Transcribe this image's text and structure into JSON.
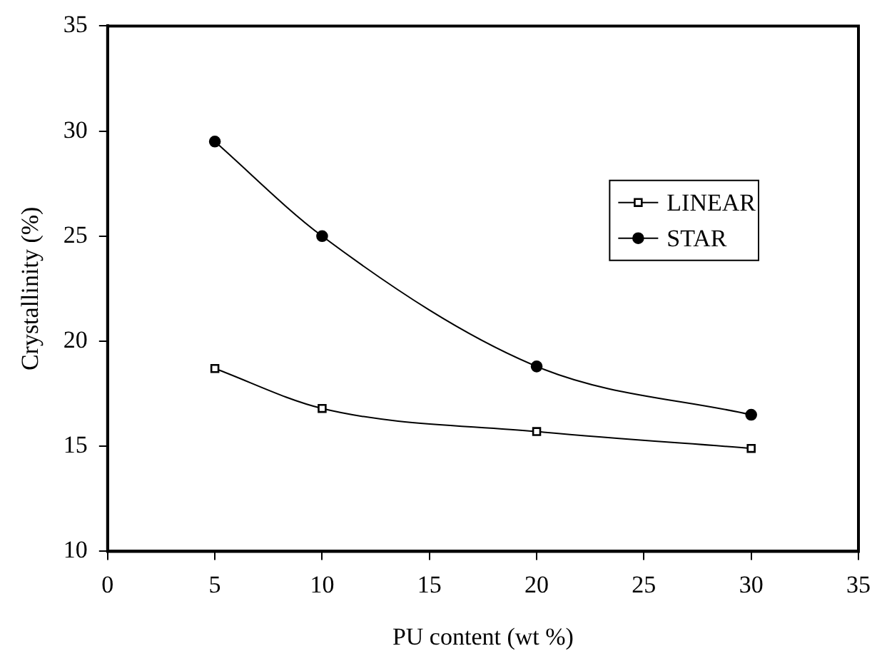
{
  "chart_data": {
    "type": "line",
    "xlabel": "PU content (wt %)",
    "ylabel": "Crystallinity (%)",
    "x": [
      5,
      10,
      20,
      30
    ],
    "series": [
      {
        "name": "LINEAR",
        "color": "#000000",
        "marker": "square",
        "values": [
          18.7,
          16.8,
          15.7,
          14.9
        ]
      },
      {
        "name": "STAR",
        "color": "#000000",
        "marker": "circle",
        "values": [
          29.5,
          25.0,
          18.8,
          16.5
        ]
      }
    ],
    "xlim": [
      0,
      35
    ],
    "xticks": [
      0,
      5,
      10,
      15,
      20,
      25,
      30,
      35
    ],
    "ylim": [
      10,
      35
    ],
    "yticks": [
      10,
      15,
      20,
      25,
      30,
      35
    ],
    "grid": false,
    "legend": "right",
    "line_style": "solid"
  }
}
